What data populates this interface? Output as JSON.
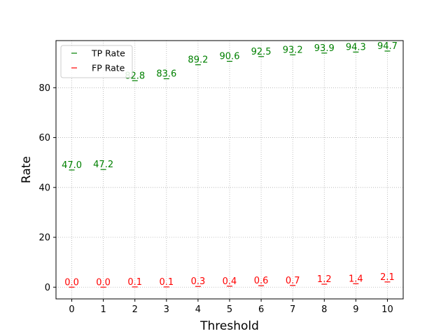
{
  "chart_data": {
    "type": "scatter",
    "title": "",
    "xlabel": "Threshold",
    "ylabel": "Rate",
    "x": [
      0,
      1,
      2,
      3,
      4,
      5,
      6,
      7,
      8,
      9,
      10
    ],
    "xlim": [
      -0.5,
      10.5
    ],
    "ylim": [
      -4.7,
      98.9
    ],
    "xticks": [
      0,
      1,
      2,
      3,
      4,
      5,
      6,
      7,
      8,
      9,
      10
    ],
    "yticks": [
      0,
      20,
      40,
      60,
      80
    ],
    "grid": true,
    "legend_position": "top-left",
    "marker": "horizontal-line",
    "series": [
      {
        "name": "TP Rate",
        "color": "#008000",
        "values": [
          47.0,
          47.2,
          82.8,
          83.6,
          89.2,
          90.6,
          92.5,
          93.2,
          93.9,
          94.3,
          94.7
        ],
        "labels": [
          "47.0",
          "47.2",
          "82.8",
          "83.6",
          "89.2",
          "90.6",
          "92.5",
          "93.2",
          "93.9",
          "94.3",
          "94.7"
        ]
      },
      {
        "name": "FP Rate",
        "color": "#ff0000",
        "values": [
          0.0,
          0.0,
          0.1,
          0.1,
          0.3,
          0.4,
          0.6,
          0.7,
          1.2,
          1.4,
          2.1
        ],
        "labels": [
          "0.0",
          "0.0",
          "0.1",
          "0.1",
          "0.3",
          "0.4",
          "0.6",
          "0.7",
          "1.2",
          "1.4",
          "2.1"
        ]
      }
    ]
  }
}
